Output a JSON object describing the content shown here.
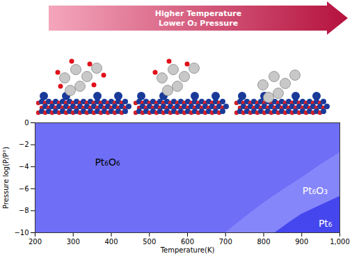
{
  "chart_data": {
    "type": "area",
    "banner": [
      "Higher Temperature",
      "Lower O₂ Pressure"
    ],
    "x_label": "Temperature(K)",
    "y_label": "Pressure log(P/P°)",
    "xlim": [
      200,
      1000
    ],
    "ylim": [
      -10,
      0
    ],
    "xticks": [
      200,
      300,
      400,
      500,
      600,
      700,
      800,
      900,
      1000
    ],
    "yticks": [
      0,
      -2,
      -4,
      -6,
      -8,
      -10
    ],
    "series": [
      {
        "name": "Pt₆O₆",
        "color": "#6e6ef6"
      },
      {
        "name": "Pt₆O₃",
        "color": "#8686fb",
        "x": [
          700,
          750,
          800,
          850,
          900,
          950,
          1000
        ],
        "values": [
          -10,
          -8.6,
          -7.3,
          -6.1,
          -5.0,
          -3.8,
          -2.7
        ]
      },
      {
        "name": "Pt₆",
        "color": "#4646ee",
        "x": [
          830,
          870,
          900,
          950,
          1000
        ],
        "values": [
          -10,
          -9.0,
          -8.3,
          -7.5,
          -6.7
        ]
      }
    ],
    "annotations": [
      {
        "text": "Pt₆O₆",
        "x": 390,
        "y": -3.6,
        "color": "#000000"
      },
      {
        "text": "Pt₆O₃",
        "x": 935,
        "y": -6.2,
        "color": "#ffffff"
      },
      {
        "text": "Pt₆",
        "x": 962,
        "y": -9.2,
        "color": "#ffffff"
      }
    ]
  }
}
